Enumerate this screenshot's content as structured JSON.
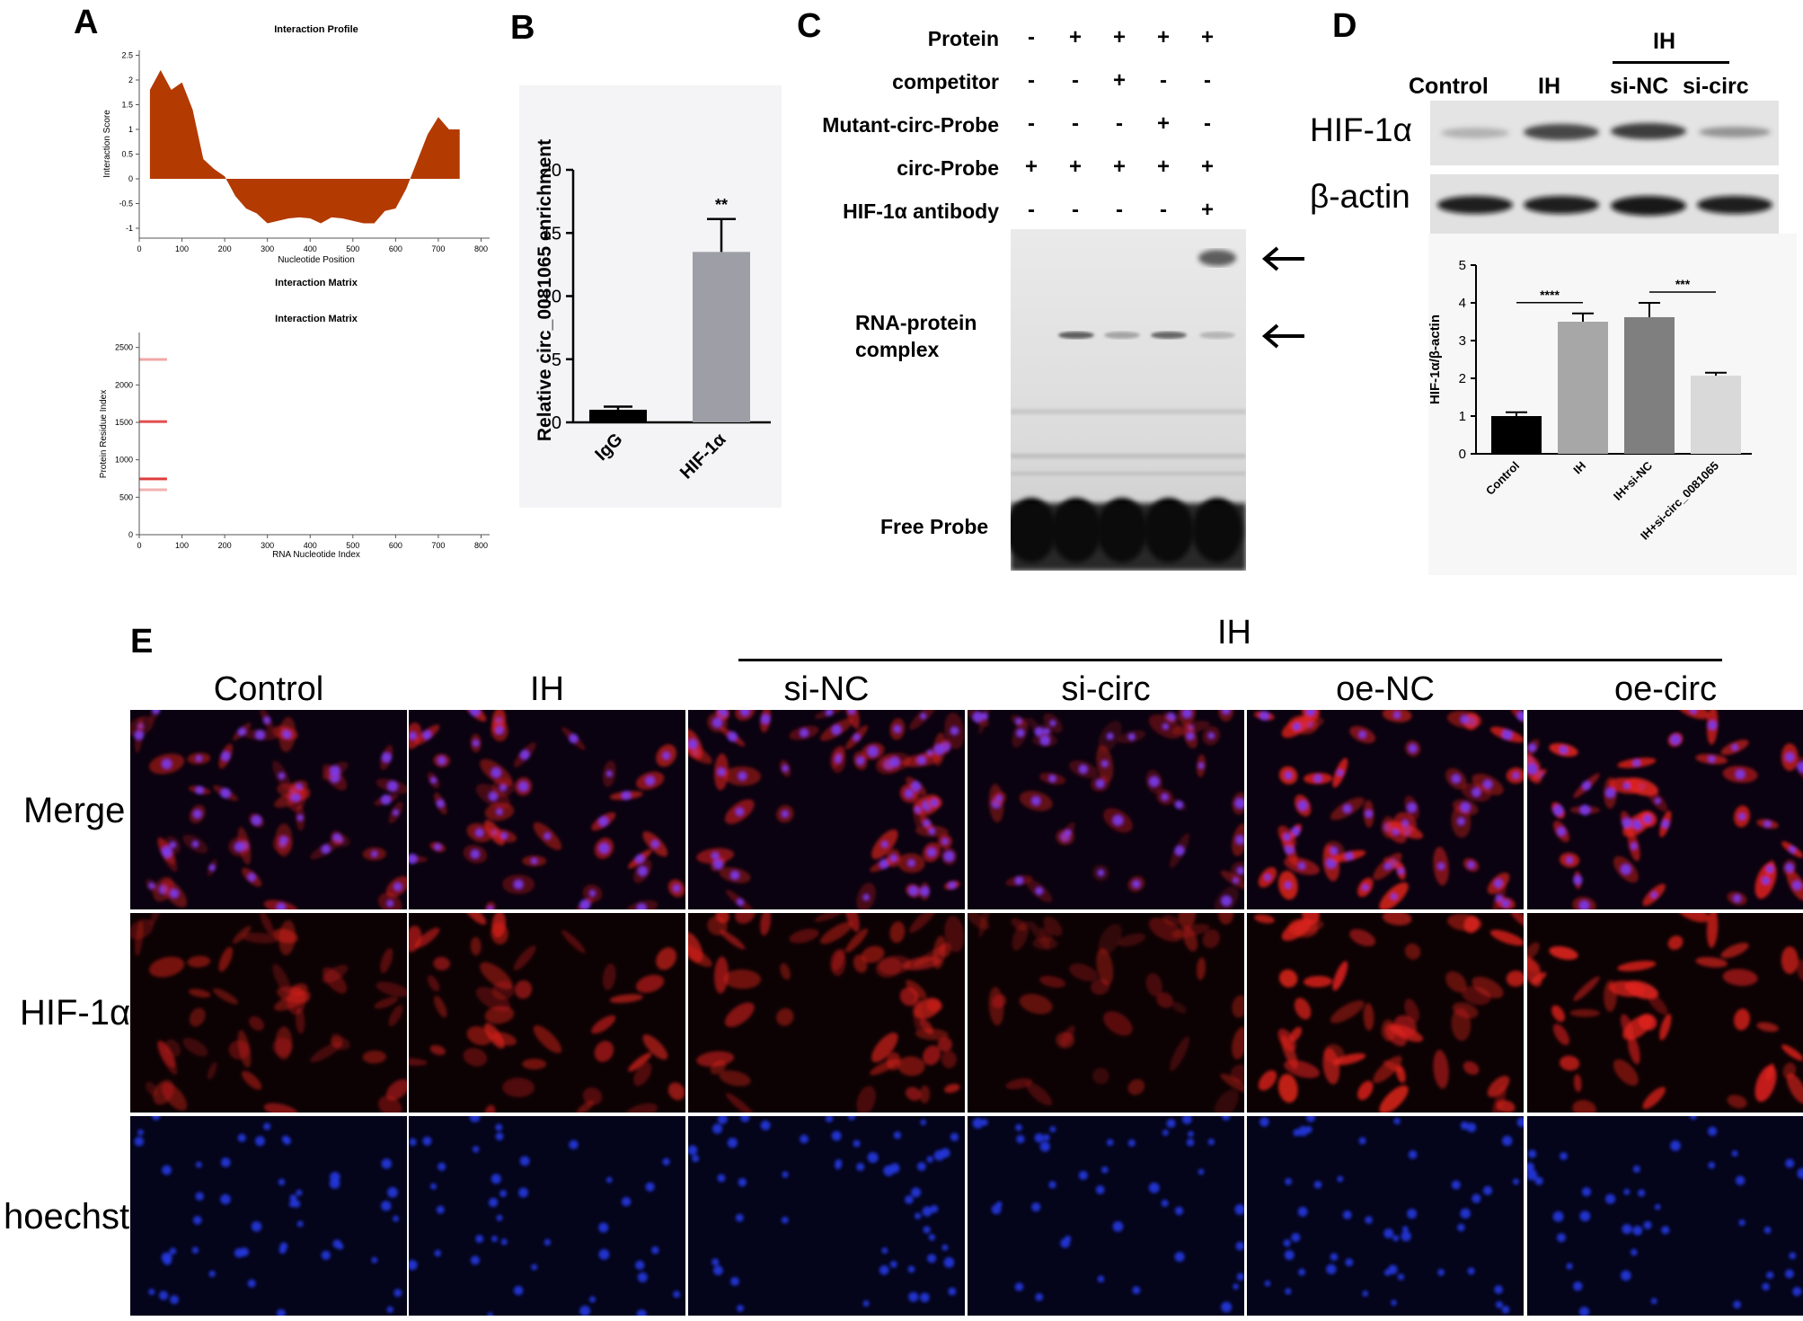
{
  "panels": {
    "a": "A",
    "b": "B",
    "c": "C",
    "d": "D",
    "e": "E"
  },
  "chart_data": [
    {
      "type": "area",
      "panel": "A-top",
      "title": "Interaction Profile",
      "xlabel": "Nucleotide Position",
      "ylabel": "Interaction Score",
      "xlim": [
        0,
        820
      ],
      "ylim": [
        -1.2,
        2.6
      ],
      "xticks": [
        "0",
        "100",
        "200",
        "300",
        "400",
        "500",
        "600",
        "700",
        "800"
      ],
      "yticks": [
        "-1",
        "-0.5",
        "0",
        "0.5",
        "1",
        "1.5",
        "2",
        "2.5"
      ],
      "x": [
        25,
        50,
        75,
        100,
        125,
        150,
        175,
        200,
        225,
        250,
        275,
        300,
        325,
        350,
        375,
        400,
        425,
        450,
        475,
        500,
        525,
        550,
        575,
        600,
        625,
        650,
        675,
        700,
        725,
        750
      ],
      "values": [
        1.8,
        2.2,
        1.8,
        1.95,
        1.4,
        0.4,
        0.2,
        0.05,
        -0.35,
        -0.6,
        -0.7,
        -0.9,
        -0.85,
        -0.8,
        -0.78,
        -0.8,
        -0.9,
        -0.78,
        -0.8,
        -0.85,
        -0.9,
        -0.9,
        -0.65,
        -0.6,
        -0.2,
        0.35,
        0.9,
        1.25,
        1.0,
        1.0
      ],
      "color": "#b33a00",
      "grid": false
    },
    {
      "type": "heatmap",
      "panel": "A-bottom",
      "header": "Interaction Matrix",
      "title": "Interaction Matrix",
      "xlabel": "RNA Nucleotide Index",
      "ylabel": "Protein Residue Index",
      "xlim": [
        0,
        820
      ],
      "ylim": [
        0,
        2700
      ],
      "xticks": [
        "0",
        "100",
        "200",
        "300",
        "400",
        "500",
        "600",
        "700",
        "800"
      ],
      "yticks": [
        "0",
        "500",
        "1000",
        "1500",
        "2000",
        "2500"
      ],
      "bands": [
        {
          "residue": 2340,
          "rna_start": 0,
          "rna_end": 65,
          "intensity": 0.45
        },
        {
          "residue": 1510,
          "rna_start": 0,
          "rna_end": 65,
          "intensity": 0.9
        },
        {
          "residue": 745,
          "rna_start": 0,
          "rna_end": 65,
          "intensity": 1.0
        },
        {
          "residue": 600,
          "rna_start": 0,
          "rna_end": 65,
          "intensity": 0.4
        }
      ],
      "color": "#e03c3c",
      "grid": false
    },
    {
      "type": "bar",
      "panel": "B",
      "categories": [
        "IgG",
        "HIF-1α"
      ],
      "values": [
        1.0,
        13.5
      ],
      "errors": [
        0.25,
        2.6
      ],
      "colors": [
        "#000000",
        "#9e9ea6"
      ],
      "ylabel": "Relative circ_0081065 enrichment",
      "ylim": [
        0,
        20
      ],
      "yticks": [
        "0",
        "5",
        "10",
        "15",
        "20"
      ],
      "significance": [
        {
          "bar": 1,
          "label": "**"
        }
      ]
    },
    {
      "type": "bar",
      "panel": "D-bottom",
      "categories": [
        "Control",
        "IH",
        "IH+si-NC",
        "IH+si-circ_0081065"
      ],
      "values": [
        1.0,
        3.5,
        3.62,
        2.07
      ],
      "errors": [
        0.1,
        0.22,
        0.38,
        0.08
      ],
      "colors": [
        "#000000",
        "#a7a7a7",
        "#7f7f7f",
        "#d9d9d9"
      ],
      "ylabel": "HIF-1α/β-actin",
      "ylim": [
        0,
        5
      ],
      "yticks": [
        "0",
        "1",
        "2",
        "3",
        "4",
        "5"
      ],
      "significance": [
        {
          "from": 0,
          "to": 1,
          "label": "****"
        },
        {
          "from": 2,
          "to": 3,
          "label": "***"
        }
      ]
    }
  ],
  "emsa": {
    "rows": [
      {
        "label": "Protein",
        "signs": [
          "-",
          "+",
          "+",
          "+",
          "+"
        ]
      },
      {
        "label": "competitor",
        "signs": [
          "-",
          "-",
          "+",
          "-",
          "-"
        ]
      },
      {
        "label": "Mutant-circ-Probe",
        "signs": [
          "-",
          "-",
          "-",
          "+",
          "-"
        ]
      },
      {
        "label": "circ-Probe",
        "signs": [
          "+",
          "+",
          "+",
          "+",
          "+"
        ]
      },
      {
        "label": "HIF-1α antibody",
        "signs": [
          "-",
          "-",
          "-",
          "-",
          "+"
        ]
      }
    ],
    "complex_label_1": "RNA-protein",
    "complex_label_2": "complex",
    "free_probe_label": "Free Probe"
  },
  "western": {
    "group_label": "IH",
    "lanes": [
      "Control",
      "IH",
      "si-NC",
      "si-circ"
    ],
    "rows": [
      "HIF-1α",
      "β-actin"
    ]
  },
  "if_panel": {
    "group_label": "IH",
    "columns": [
      "Control",
      "IH",
      "si-NC",
      "si-circ",
      "oe-NC",
      "oe-circ"
    ],
    "rows": [
      "Merge",
      "HIF-1α",
      "hoechst"
    ]
  }
}
